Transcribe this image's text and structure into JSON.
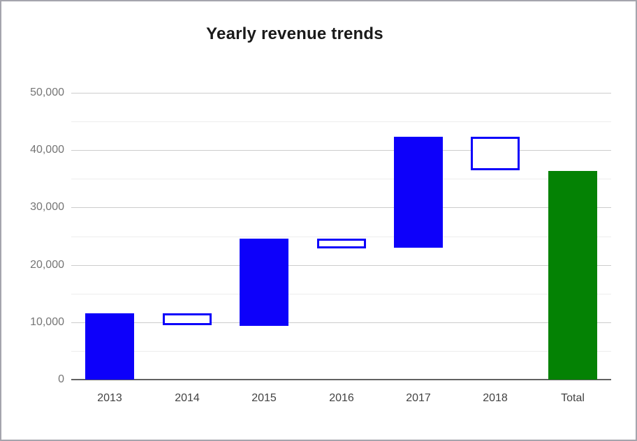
{
  "window": {
    "background": "#ffffff",
    "border_color": "#a5a5ad"
  },
  "chart_data": {
    "type": "waterfall",
    "title": "Yearly revenue trends",
    "legend": "none",
    "categories": [
      "2013",
      "2014",
      "2015",
      "2016",
      "2017",
      "2018",
      "Total"
    ],
    "bars": [
      {
        "label": "2013",
        "start": 0,
        "end": 11500,
        "change": 11500,
        "kind": "rise"
      },
      {
        "label": "2014",
        "start": 11500,
        "end": 9400,
        "change": -2100,
        "kind": "fall"
      },
      {
        "label": "2015",
        "start": 9400,
        "end": 24600,
        "change": 15200,
        "kind": "rise"
      },
      {
        "label": "2016",
        "start": 24600,
        "end": 22900,
        "change": -1700,
        "kind": "fall"
      },
      {
        "label": "2017",
        "start": 22900,
        "end": 42300,
        "change": 19400,
        "kind": "rise"
      },
      {
        "label": "2018",
        "start": 42300,
        "end": 36400,
        "change": -5900,
        "kind": "fall"
      },
      {
        "label": "Total",
        "start": 0,
        "end": 36400,
        "change": 36400,
        "kind": "total"
      }
    ],
    "y_axis": {
      "min": 0,
      "max": 50000,
      "major_step": 10000,
      "minor_step": 5000,
      "ticks": [
        {
          "value": 0,
          "label": "0"
        },
        {
          "value": 10000,
          "label": "10,000"
        },
        {
          "value": 20000,
          "label": "20,000"
        },
        {
          "value": 30000,
          "label": "30,000"
        },
        {
          "value": 40000,
          "label": "40,000"
        },
        {
          "value": 50000,
          "label": "50,000"
        }
      ]
    },
    "colors": {
      "rise_fill": "#0d00fa",
      "fall_fill": "#ffffff",
      "fall_border": "#0d00fa",
      "total_fill": "#048204",
      "gridline_major": "#cccccc",
      "gridline_minor": "#ededed",
      "baseline": "#616161",
      "y_label": "#757575",
      "x_label": "#424242",
      "title": "#1a1a1a"
    }
  }
}
